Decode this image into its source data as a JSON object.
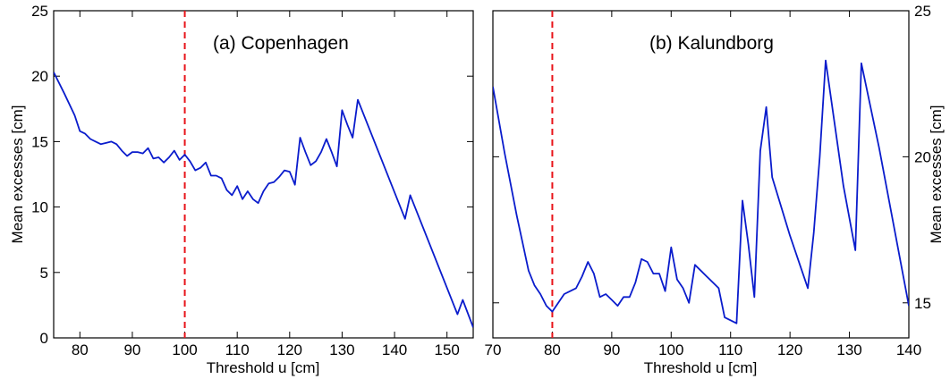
{
  "chart_data": [
    {
      "type": "line",
      "title": "(a)  Copenhagen",
      "xlabel": "Threshold u  [cm]",
      "ylabel": "Mean excesses  [cm]",
      "xlim": [
        75,
        155
      ],
      "ylim": [
        0,
        25
      ],
      "xticks": [
        80,
        90,
        100,
        110,
        120,
        130,
        140,
        150
      ],
      "yticks": [
        0,
        5,
        10,
        15,
        20,
        25
      ],
      "ytick_side": "left",
      "grid": false,
      "reference_line": {
        "x": 100,
        "style": "dashed",
        "color": "#e8141a"
      },
      "series": [
        {
          "color": "#0a1ccc",
          "x": [
            75,
            77,
            79,
            80,
            81,
            82,
            83,
            84,
            85,
            86,
            87,
            88,
            89,
            90,
            91,
            92,
            93,
            94,
            95,
            96,
            97,
            98,
            99,
            100,
            101,
            102,
            103,
            104,
            105,
            106,
            107,
            108,
            109,
            110,
            111,
            112,
            113,
            114,
            115,
            116,
            117,
            118,
            119,
            120,
            121,
            122,
            123,
            124,
            125,
            126,
            127,
            128,
            129,
            130,
            131,
            132,
            133,
            142,
            143,
            152,
            153,
            155
          ],
          "y": [
            20.3,
            18.7,
            17.0,
            15.8,
            15.6,
            15.2,
            15.0,
            14.8,
            14.9,
            15.0,
            14.8,
            14.3,
            13.9,
            14.2,
            14.2,
            14.1,
            14.5,
            13.7,
            13.8,
            13.4,
            13.8,
            14.3,
            13.6,
            14.0,
            13.5,
            12.8,
            13.0,
            13.4,
            12.4,
            12.4,
            12.2,
            11.3,
            10.9,
            11.6,
            10.6,
            11.2,
            10.6,
            10.3,
            11.2,
            11.8,
            11.9,
            12.3,
            12.8,
            12.7,
            11.7,
            15.3,
            14.2,
            13.2,
            13.5,
            14.2,
            15.2,
            14.2,
            13.1,
            17.4,
            16.3,
            15.3,
            18.2,
            9.1,
            10.9,
            1.8,
            2.9,
            0.8
          ]
        }
      ]
    },
    {
      "type": "line",
      "title": "(b)  Kalundborg",
      "xlabel": "Threshold u  [cm]",
      "ylabel": "Mean excesses  [cm]",
      "xlim": [
        70,
        140
      ],
      "ylim": [
        13.8,
        25
      ],
      "xticks": [
        70,
        80,
        90,
        100,
        110,
        120,
        130,
        140
      ],
      "yticks": [
        15,
        20,
        25
      ],
      "ytick_side": "right",
      "grid": false,
      "reference_line": {
        "x": 80,
        "style": "dashed",
        "color": "#e8141a"
      },
      "series": [
        {
          "color": "#0a1ccc",
          "x": [
            70,
            72,
            74,
            76,
            77,
            78,
            79,
            80,
            81,
            82,
            83,
            84,
            85,
            86,
            87,
            88,
            89,
            90,
            91,
            92,
            93,
            94,
            95,
            96,
            97,
            98,
            99,
            100,
            101,
            102,
            103,
            104,
            105,
            106,
            107,
            108,
            109,
            111,
            112,
            113,
            114,
            115,
            116,
            117,
            120,
            123,
            124,
            125,
            126,
            129,
            131,
            132,
            135,
            140
          ],
          "y": [
            22.4,
            20.1,
            18.0,
            16.1,
            15.6,
            15.3,
            14.9,
            14.7,
            15.0,
            15.3,
            15.4,
            15.5,
            15.9,
            16.4,
            16.0,
            15.2,
            15.3,
            15.1,
            14.9,
            15.2,
            15.2,
            15.7,
            16.5,
            16.4,
            16.0,
            16.0,
            15.4,
            16.9,
            15.8,
            15.5,
            15.0,
            16.3,
            16.1,
            15.9,
            15.7,
            15.5,
            14.5,
            14.3,
            18.5,
            17.0,
            15.2,
            20.2,
            21.7,
            19.3,
            17.3,
            15.5,
            17.4,
            20.0,
            23.3,
            19.0,
            16.8,
            23.2,
            20.3,
            14.9
          ]
        }
      ]
    }
  ]
}
